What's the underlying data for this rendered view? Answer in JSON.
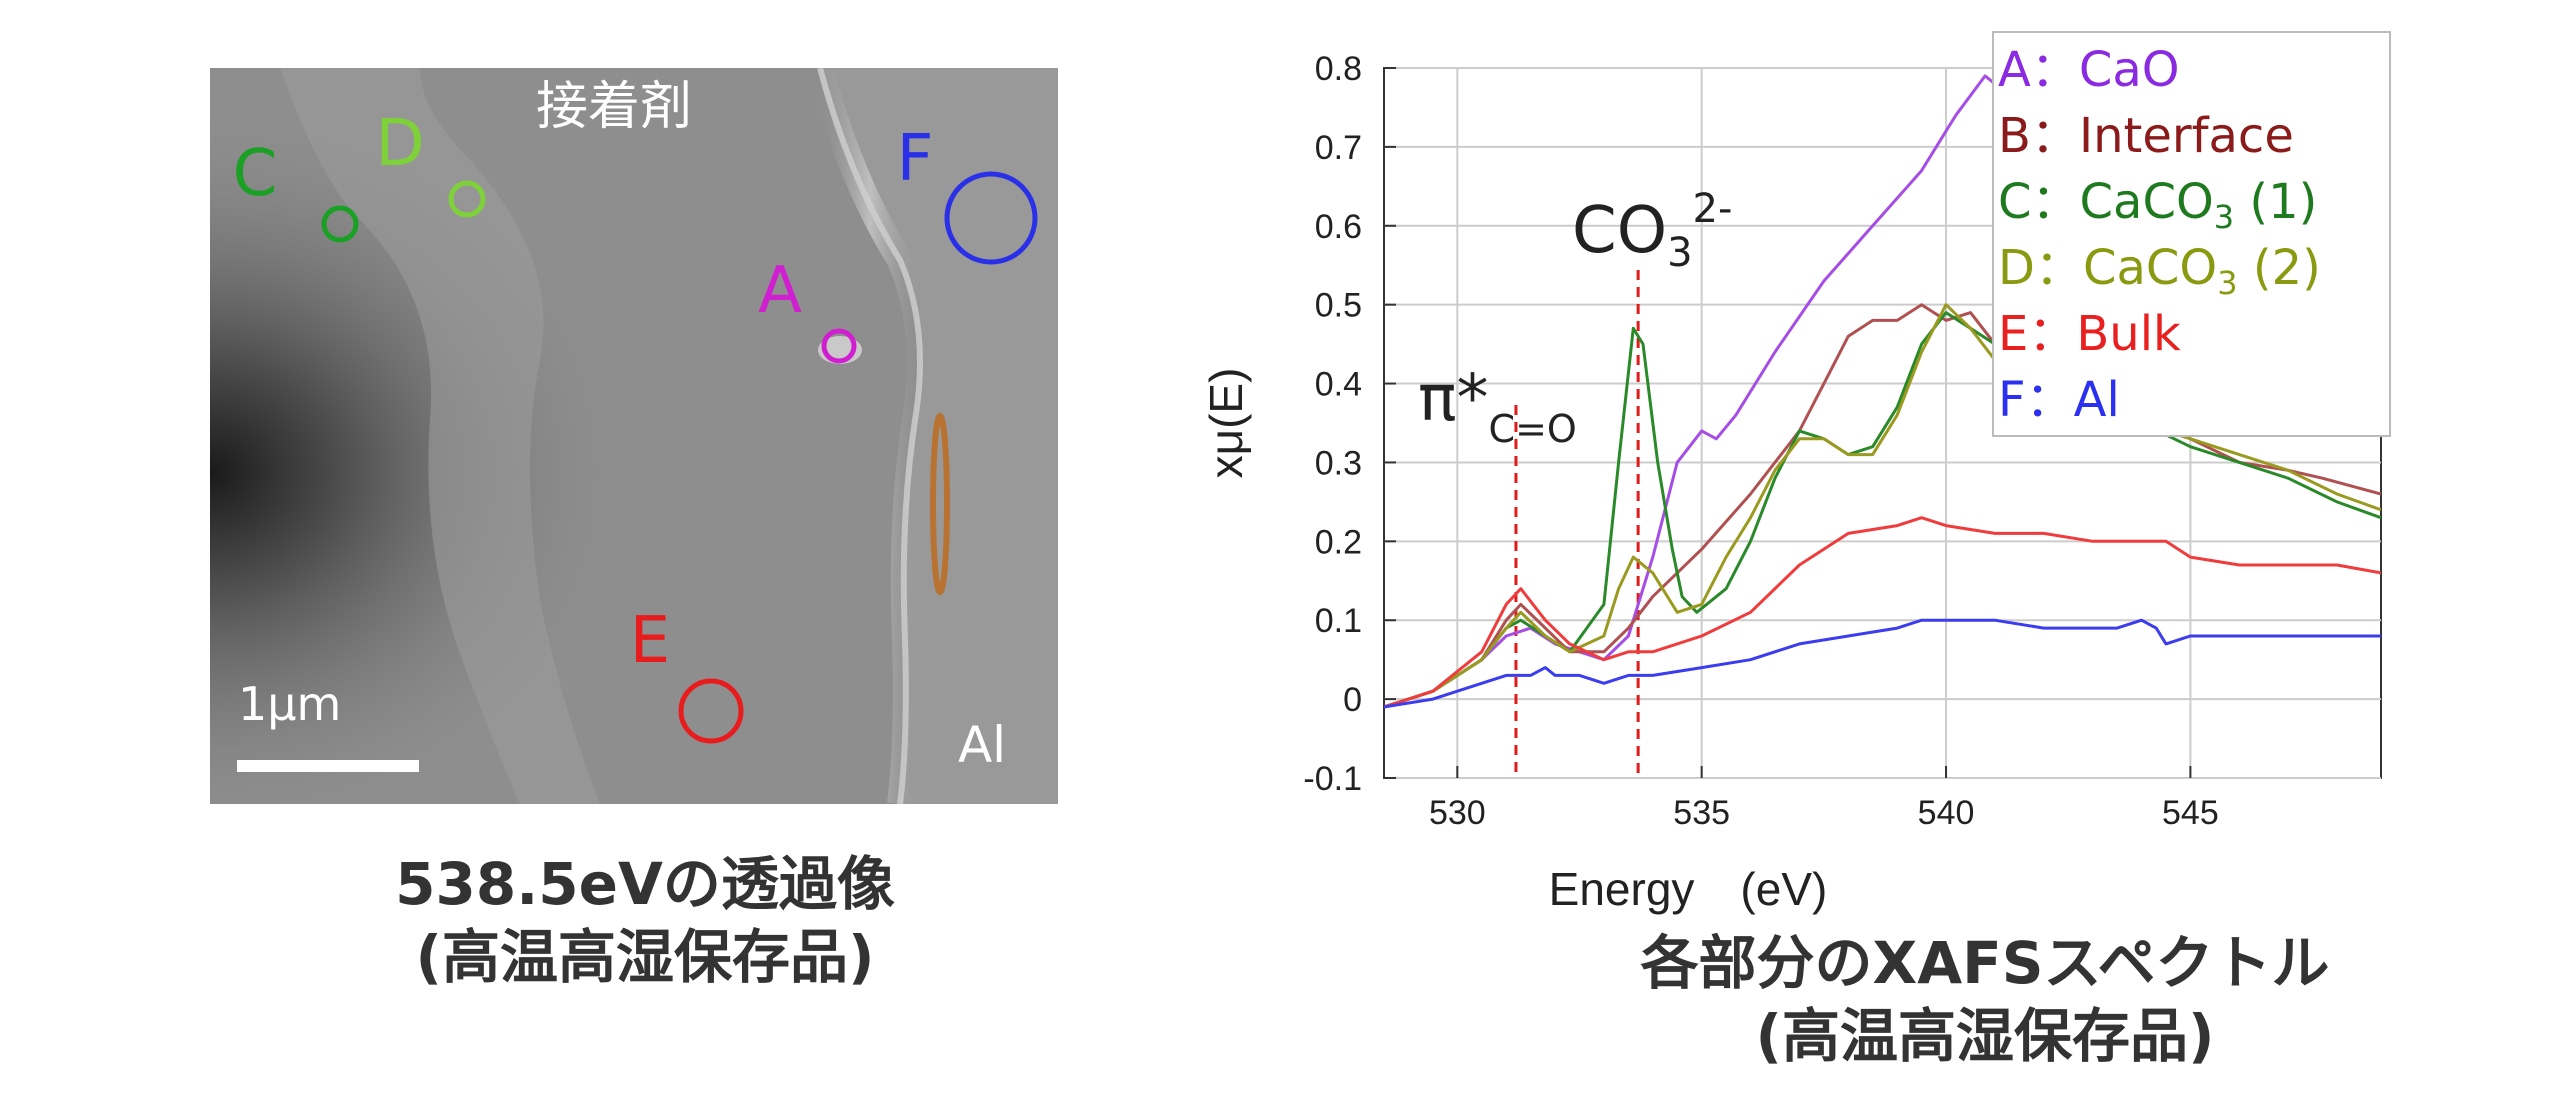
{
  "image_panel": {
    "region_label": "接着剤",
    "al_label": "Al",
    "scale_label": "1μm",
    "markers": [
      {
        "letter": "A",
        "color": "#d01fd0"
      },
      {
        "letter": "C",
        "color": "#1aa025"
      },
      {
        "letter": "D",
        "color": "#7fd13a"
      },
      {
        "letter": "E",
        "color": "#e81c1c"
      },
      {
        "letter": "F",
        "color": "#2a2fe8"
      }
    ],
    "caption_line1": "538.5eVの透過像",
    "caption_line2": "(高温高湿保存品)"
  },
  "annotations": {
    "pi_label": "π*",
    "pi_sub": "C=O",
    "co3_label": "CO",
    "co3_sub": "3",
    "co3_sup": "2-"
  },
  "legend": [
    {
      "letter": "A",
      "sep": "：",
      "text": "CaO",
      "color": "#8a2be2"
    },
    {
      "letter": "B",
      "sep": "：",
      "text": "Interface",
      "color": "#8b1a1a"
    },
    {
      "letter": "C",
      "sep": "：",
      "text": "CaCO",
      "sub": "3",
      "suffix": " (1)",
      "color": "#1f7a1f"
    },
    {
      "letter": "D",
      "sep": "：",
      "text": "CaCO",
      "sub": "3",
      "suffix": " (2)",
      "color": "#8a9a10"
    },
    {
      "letter": "E",
      "sep": "：",
      "text": "Bulk",
      "color": "#e82020"
    },
    {
      "letter": "F",
      "sep": "：",
      "text": "Al",
      "color": "#2a2ff0"
    }
  ],
  "right_caption_line1": "各部分のXAFSスペクトル",
  "right_caption_line2": "(高温高湿保存品)",
  "chart_data": {
    "type": "line",
    "xlabel": "Energy　(eV)",
    "ylabel": "xμ(E)",
    "xlim": [
      528.5,
      548.9
    ],
    "ylim": [
      -0.1,
      0.8
    ],
    "xticks": [
      530,
      535,
      540,
      545
    ],
    "yticks": [
      -0.1,
      0,
      0.1,
      0.2,
      0.3,
      0.4,
      0.5,
      0.6,
      0.7,
      0.8
    ],
    "ytick_labels": [
      "-0.1",
      "0",
      "0.1",
      "0.2",
      "0.3",
      "0.4",
      "0.5",
      "0.6",
      "0.7",
      "0.8"
    ],
    "grid": true,
    "reference_lines": [
      531.2,
      533.7
    ],
    "series": [
      {
        "name": "A：CaO",
        "color": "#a64de6",
        "points": [
          [
            528.5,
            -0.01
          ],
          [
            529.5,
            0.01
          ],
          [
            530.5,
            0.05
          ],
          [
            531.0,
            0.08
          ],
          [
            531.5,
            0.09
          ],
          [
            532.0,
            0.07
          ],
          [
            532.5,
            0.06
          ],
          [
            533.0,
            0.05
          ],
          [
            533.5,
            0.08
          ],
          [
            534.0,
            0.18
          ],
          [
            534.5,
            0.3
          ],
          [
            535.0,
            0.34
          ],
          [
            535.3,
            0.33
          ],
          [
            535.7,
            0.36
          ],
          [
            536.5,
            0.44
          ],
          [
            537.5,
            0.53
          ],
          [
            538.5,
            0.6
          ],
          [
            539.5,
            0.67
          ],
          [
            540.2,
            0.74
          ],
          [
            540.8,
            0.79
          ],
          [
            541.2,
            0.77
          ],
          [
            541.6,
            0.79
          ],
          [
            542.0,
            0.76
          ]
        ]
      },
      {
        "name": "B：Interface",
        "color": "#b05050",
        "points": [
          [
            528.5,
            -0.01
          ],
          [
            529.5,
            0.01
          ],
          [
            530.5,
            0.05
          ],
          [
            531.0,
            0.1
          ],
          [
            531.3,
            0.12
          ],
          [
            531.8,
            0.09
          ],
          [
            532.3,
            0.06
          ],
          [
            533.0,
            0.06
          ],
          [
            533.5,
            0.09
          ],
          [
            534.0,
            0.13
          ],
          [
            535.0,
            0.19
          ],
          [
            536.0,
            0.26
          ],
          [
            537.0,
            0.34
          ],
          [
            537.5,
            0.4
          ],
          [
            538.0,
            0.46
          ],
          [
            538.5,
            0.48
          ],
          [
            539.0,
            0.48
          ],
          [
            539.5,
            0.5
          ],
          [
            540.0,
            0.48
          ],
          [
            540.5,
            0.49
          ],
          [
            541.0,
            0.45
          ],
          [
            542.0,
            0.43
          ],
          [
            543.0,
            0.4
          ],
          [
            544.0,
            0.36
          ],
          [
            545.0,
            0.33
          ],
          [
            546.0,
            0.3
          ],
          [
            547.0,
            0.29
          ],
          [
            547.7,
            0.28
          ],
          [
            548.9,
            0.26
          ]
        ]
      },
      {
        "name": "C：CaCO3 (1)",
        "color": "#2a8a2a",
        "points": [
          [
            528.5,
            -0.01
          ],
          [
            529.5,
            0.01
          ],
          [
            530.5,
            0.05
          ],
          [
            531.0,
            0.09
          ],
          [
            531.3,
            0.1
          ],
          [
            531.8,
            0.08
          ],
          [
            532.3,
            0.06
          ],
          [
            533.0,
            0.12
          ],
          [
            533.3,
            0.3
          ],
          [
            533.6,
            0.47
          ],
          [
            533.8,
            0.45
          ],
          [
            534.1,
            0.3
          ],
          [
            534.4,
            0.19
          ],
          [
            534.6,
            0.13
          ],
          [
            534.9,
            0.11
          ],
          [
            535.5,
            0.14
          ],
          [
            536.0,
            0.2
          ],
          [
            536.5,
            0.28
          ],
          [
            537.0,
            0.34
          ],
          [
            537.5,
            0.33
          ],
          [
            538.0,
            0.31
          ],
          [
            538.5,
            0.32
          ],
          [
            539.0,
            0.37
          ],
          [
            539.5,
            0.45
          ],
          [
            540.0,
            0.49
          ],
          [
            540.5,
            0.47
          ],
          [
            541.0,
            0.45
          ],
          [
            542.0,
            0.4
          ],
          [
            543.0,
            0.38
          ],
          [
            544.0,
            0.35
          ],
          [
            545.0,
            0.32
          ],
          [
            546.0,
            0.3
          ],
          [
            547.0,
            0.28
          ],
          [
            548.0,
            0.25
          ],
          [
            548.9,
            0.23
          ]
        ]
      },
      {
        "name": "D：CaCO3 (2)",
        "color": "#9a9a20",
        "points": [
          [
            528.5,
            -0.01
          ],
          [
            529.5,
            0.01
          ],
          [
            530.5,
            0.05
          ],
          [
            531.0,
            0.09
          ],
          [
            531.3,
            0.11
          ],
          [
            531.8,
            0.08
          ],
          [
            532.3,
            0.06
          ],
          [
            533.0,
            0.08
          ],
          [
            533.3,
            0.14
          ],
          [
            533.6,
            0.18
          ],
          [
            534.0,
            0.16
          ],
          [
            534.5,
            0.11
          ],
          [
            535.0,
            0.12
          ],
          [
            535.5,
            0.18
          ],
          [
            536.0,
            0.23
          ],
          [
            536.5,
            0.29
          ],
          [
            537.0,
            0.33
          ],
          [
            537.5,
            0.33
          ],
          [
            538.0,
            0.31
          ],
          [
            538.5,
            0.31
          ],
          [
            539.0,
            0.36
          ],
          [
            539.5,
            0.44
          ],
          [
            540.0,
            0.5
          ],
          [
            540.5,
            0.47
          ],
          [
            541.0,
            0.43
          ],
          [
            542.0,
            0.41
          ],
          [
            543.0,
            0.38
          ],
          [
            544.0,
            0.35
          ],
          [
            545.0,
            0.33
          ],
          [
            546.0,
            0.31
          ],
          [
            547.0,
            0.29
          ],
          [
            548.0,
            0.26
          ],
          [
            548.9,
            0.24
          ]
        ]
      },
      {
        "name": "E：Bulk",
        "color": "#f03c3c",
        "points": [
          [
            528.5,
            -0.01
          ],
          [
            529.5,
            0.01
          ],
          [
            530.5,
            0.06
          ],
          [
            531.0,
            0.12
          ],
          [
            531.3,
            0.14
          ],
          [
            531.8,
            0.1
          ],
          [
            532.3,
            0.07
          ],
          [
            533.0,
            0.05
          ],
          [
            533.5,
            0.06
          ],
          [
            534.0,
            0.06
          ],
          [
            535.0,
            0.08
          ],
          [
            536.0,
            0.11
          ],
          [
            537.0,
            0.17
          ],
          [
            538.0,
            0.21
          ],
          [
            539.0,
            0.22
          ],
          [
            539.5,
            0.23
          ],
          [
            540.0,
            0.22
          ],
          [
            541.0,
            0.21
          ],
          [
            542.0,
            0.21
          ],
          [
            543.0,
            0.2
          ],
          [
            544.0,
            0.2
          ],
          [
            544.5,
            0.2
          ],
          [
            545.0,
            0.18
          ],
          [
            546.0,
            0.17
          ],
          [
            547.0,
            0.17
          ],
          [
            548.0,
            0.17
          ],
          [
            548.9,
            0.16
          ]
        ]
      },
      {
        "name": "F：Al",
        "color": "#3c3cf0",
        "points": [
          [
            528.5,
            -0.01
          ],
          [
            529.5,
            0.0
          ],
          [
            530.5,
            0.02
          ],
          [
            531.0,
            0.03
          ],
          [
            531.5,
            0.03
          ],
          [
            531.8,
            0.04
          ],
          [
            532.0,
            0.03
          ],
          [
            532.5,
            0.03
          ],
          [
            533.0,
            0.02
          ],
          [
            533.5,
            0.03
          ],
          [
            534.0,
            0.03
          ],
          [
            535.0,
            0.04
          ],
          [
            536.0,
            0.05
          ],
          [
            537.0,
            0.07
          ],
          [
            538.0,
            0.08
          ],
          [
            539.0,
            0.09
          ],
          [
            539.5,
            0.1
          ],
          [
            540.0,
            0.1
          ],
          [
            540.5,
            0.1
          ],
          [
            541.0,
            0.1
          ],
          [
            542.0,
            0.09
          ],
          [
            543.0,
            0.09
          ],
          [
            543.5,
            0.09
          ],
          [
            544.0,
            0.1
          ],
          [
            544.3,
            0.09
          ],
          [
            544.5,
            0.07
          ],
          [
            545.0,
            0.08
          ],
          [
            546.0,
            0.08
          ],
          [
            547.0,
            0.08
          ],
          [
            548.9,
            0.08
          ]
        ]
      }
    ]
  }
}
